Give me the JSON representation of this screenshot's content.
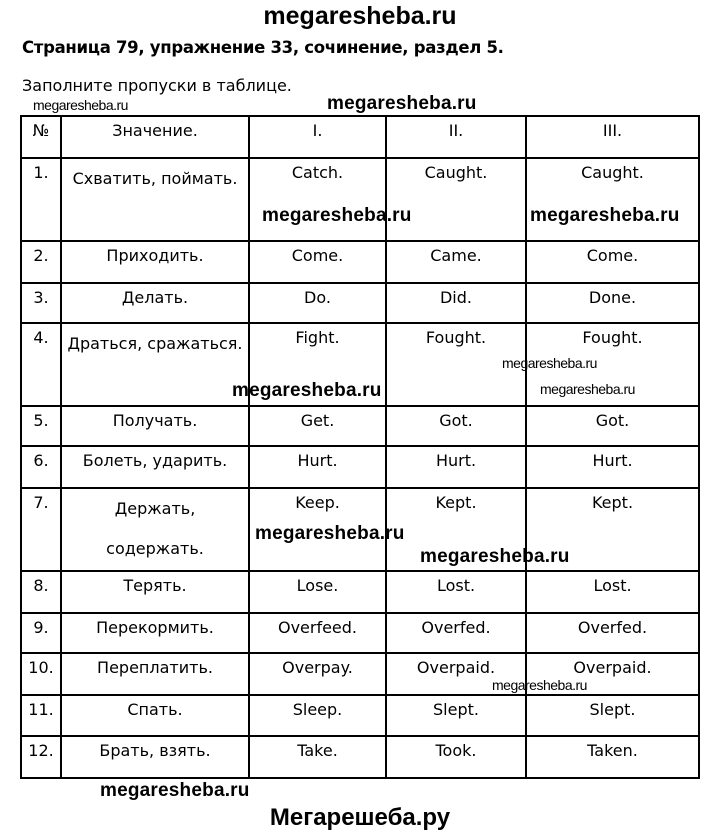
{
  "watermark": "megaresheba.ru",
  "footer_watermark": "Мегарешеба.ру",
  "title": "Страница 79, упражнение 33, сочинение, раздел 5.",
  "instruction": "Заполните пропуски в таблице.",
  "table": {
    "headers": [
      "№",
      "Значение.",
      "I.",
      "II.",
      "III."
    ],
    "rows": [
      [
        "1.",
        "Схватить, поймать.",
        "Catch.",
        "Caught.",
        "Caught."
      ],
      [
        "2.",
        "Приходить.",
        "Come.",
        "Came.",
        "Come."
      ],
      [
        "3.",
        "Делать.",
        "Do.",
        "Did.",
        "Done."
      ],
      [
        "4.",
        "Драться, сражаться.",
        "Fight.",
        "Fought.",
        "Fought."
      ],
      [
        "5.",
        "Получать.",
        "Get.",
        "Got.",
        "Got."
      ],
      [
        "6.",
        "Болеть, ударить.",
        "Hurt.",
        "Hurt.",
        "Hurt."
      ],
      [
        "7.",
        "Держать, содержать.",
        "Keep.",
        "Kept.",
        "Kept."
      ],
      [
        "8.",
        "Терять.",
        "Lose.",
        "Lost.",
        "Lost."
      ],
      [
        "9.",
        "Перекормить.",
        "Overfeed.",
        "Overfed.",
        "Overfed."
      ],
      [
        "10.",
        "Переплатить.",
        "Overpay.",
        "Overpaid.",
        "Overpaid."
      ],
      [
        "11.",
        "Спать.",
        "Sleep.",
        "Slept.",
        "Slept."
      ],
      [
        "12.",
        "Брать, взять.",
        "Take.",
        "Took.",
        "Taken."
      ]
    ]
  }
}
